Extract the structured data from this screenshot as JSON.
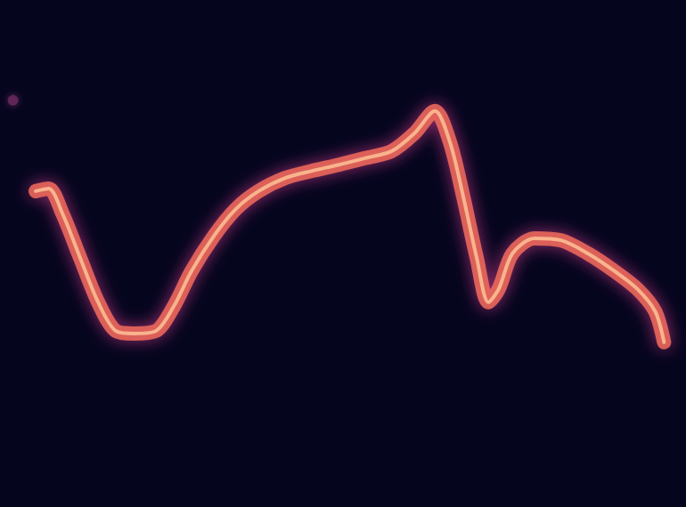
{
  "chart_data": {
    "type": "line",
    "xlim": [
      0,
      100
    ],
    "ylim": [
      0,
      100
    ],
    "tick_labels": false,
    "grid": false,
    "series": [
      {
        "type": "line",
        "color": "#f26b5b",
        "x": [
          5.2,
          7.1,
          9.1,
          11.7,
          14.3,
          16.9,
          19.5,
          22.7,
          25.3,
          27.9,
          31.2,
          34.4,
          37.7,
          41.6,
          45.5,
          49.4,
          53.2,
          57.1,
          60.4,
          63.4,
          65.6,
          67.5,
          69.5,
          71.2,
          72.7,
          74.7,
          77.9,
          81.8,
          85.7,
          89.6,
          92.9,
          95.5,
          96.8
        ],
        "values": [
          62.3,
          62.8,
          57.9,
          49.1,
          40.4,
          34.7,
          34.2,
          34.7,
          39.5,
          46.5,
          53.5,
          58.8,
          62.3,
          64.9,
          66.3,
          67.5,
          68.8,
          70.2,
          73.7,
          78.1,
          71.9,
          61.4,
          49.1,
          40.4,
          43.0,
          50.0,
          53.0,
          52.6,
          50.0,
          46.5,
          43.0,
          38.6,
          32.5
        ]
      },
      {
        "type": "scatter",
        "color": "#6b2a5e",
        "x": [
          1.9
        ],
        "values": [
          80.2
        ]
      }
    ]
  }
}
